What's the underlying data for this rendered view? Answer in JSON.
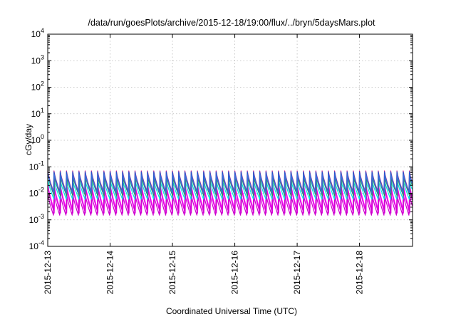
{
  "chart_data": {
    "type": "line",
    "title": "/data/run/goesPlots/archive/2015-12-18/19:00/flux/../bryn/5daysMars.plot",
    "xlabel": "Coordinated Universal Time (UTC)",
    "ylabel": "cGy/day",
    "yscale": "log",
    "ylim": [
      0.0001,
      10000
    ],
    "xlim_days": [
      0,
      5.85
    ],
    "x_ticks": [
      {
        "label": "2015-12-13",
        "day": 0
      },
      {
        "label": "2015-12-14",
        "day": 1
      },
      {
        "label": "2015-12-15",
        "day": 2
      },
      {
        "label": "2015-12-16",
        "day": 3
      },
      {
        "label": "2015-12-17",
        "day": 4
      },
      {
        "label": "2015-12-18",
        "day": 5
      }
    ],
    "y_ticks": [
      {
        "base": "10",
        "exp": "4",
        "value": 10000
      },
      {
        "base": "10",
        "exp": "3",
        "value": 1000
      },
      {
        "base": "10",
        "exp": "2",
        "value": 100
      },
      {
        "base": "10",
        "exp": "1",
        "value": 10
      },
      {
        "base": "10",
        "exp": "0",
        "value": 1
      },
      {
        "base": "10",
        "exp": "-1",
        "value": 0.1
      },
      {
        "base": "10",
        "exp": "-2",
        "value": 0.01
      },
      {
        "base": "10",
        "exp": "-3",
        "value": 0.001
      },
      {
        "base": "10",
        "exp": "-4",
        "value": 0.0001
      }
    ],
    "grid": true,
    "sawtooth_period_days": 0.1,
    "series": [
      {
        "color": "#e0218a",
        "peak": 0.07,
        "trough": 0.012
      },
      {
        "color": "#ff00ff",
        "peak": 0.02,
        "trough": 0.0025
      },
      {
        "color": "#e000e0",
        "peak": 0.014,
        "trough": 0.0018
      },
      {
        "color": "#cc00cc",
        "peak": 0.01,
        "trough": 0.0015
      },
      {
        "color": "#00e5e5",
        "peak": 0.03,
        "trough": 0.006
      },
      {
        "color": "#2e8b57",
        "peak": 0.04,
        "trough": 0.008
      },
      {
        "color": "#2255cc",
        "peak": 0.065,
        "trough": 0.011
      },
      {
        "color": "#3a6fd8",
        "peak": 0.05,
        "trough": 0.01
      }
    ]
  }
}
